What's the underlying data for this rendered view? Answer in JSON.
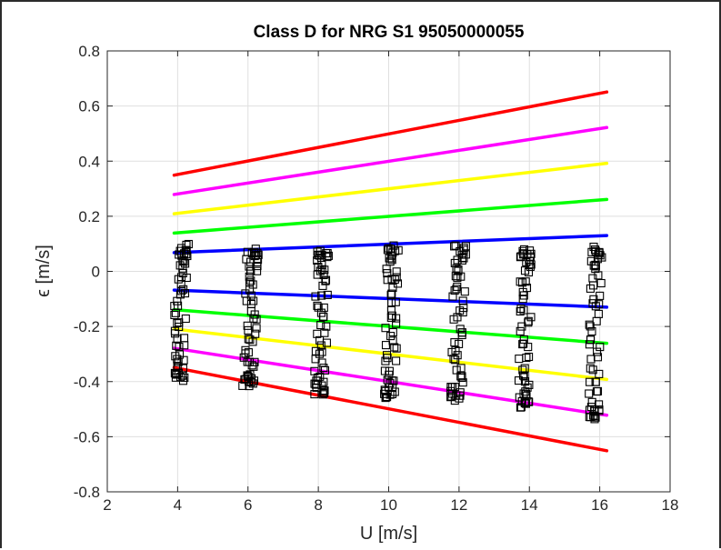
{
  "chart_data": {
    "type": "scatter",
    "title": "Class D for NRG S1 95050000055",
    "xlabel": "U [m/s]",
    "ylabel": "ϵ [m/s]",
    "xlim": [
      2,
      18
    ],
    "ylim": [
      -0.8,
      0.8
    ],
    "xticks": [
      2,
      4,
      6,
      8,
      10,
      12,
      14,
      16,
      18
    ],
    "yticks": [
      -0.8,
      -0.6,
      -0.4,
      -0.2,
      0,
      0.2,
      0.4,
      0.6,
      0.8
    ],
    "xtick_labels": [
      "2",
      "4",
      "6",
      "8",
      "10",
      "12",
      "14",
      "16",
      "18"
    ],
    "ytick_labels": [
      "-0.8",
      "-0.6",
      "-0.4",
      "-0.2",
      "0",
      "0.2",
      "0.4",
      "0.6",
      "0.8"
    ],
    "grid": true,
    "legend": "none",
    "lines": [
      {
        "color": "#ff0000",
        "x": [
          3.9,
          16.2
        ],
        "y": [
          0.349,
          0.651
        ]
      },
      {
        "color": "#ff00ff",
        "x": [
          3.9,
          16.2
        ],
        "y": [
          0.279,
          0.522
        ]
      },
      {
        "color": "#ffff00",
        "x": [
          3.9,
          16.2
        ],
        "y": [
          0.209,
          0.392
        ]
      },
      {
        "color": "#00ff00",
        "x": [
          3.9,
          16.2
        ],
        "y": [
          0.139,
          0.261
        ]
      },
      {
        "color": "#0000ff",
        "x": [
          3.9,
          16.2
        ],
        "y": [
          0.068,
          0.13
        ]
      },
      {
        "color": "#0000ff",
        "x": [
          3.9,
          16.2
        ],
        "y": [
          -0.068,
          -0.13
        ]
      },
      {
        "color": "#00ff00",
        "x": [
          3.9,
          16.2
        ],
        "y": [
          -0.139,
          -0.261
        ]
      },
      {
        "color": "#ffff00",
        "x": [
          3.9,
          16.2
        ],
        "y": [
          -0.209,
          -0.392
        ]
      },
      {
        "color": "#ff00ff",
        "x": [
          3.9,
          16.2
        ],
        "y": [
          -0.279,
          -0.522
        ]
      },
      {
        "color": "#ff0000",
        "x": [
          3.9,
          16.2
        ],
        "y": [
          -0.349,
          -0.651
        ]
      }
    ],
    "scatter": {
      "marker": "open-square",
      "color": "#000000",
      "clusters": [
        {
          "x": 4.0,
          "ymin": -0.39,
          "ymax": 0.09
        },
        {
          "x": 6.0,
          "ymin": -0.41,
          "ymax": 0.07
        },
        {
          "x": 8.0,
          "ymin": -0.44,
          "ymax": 0.07
        },
        {
          "x": 10.0,
          "ymin": -0.45,
          "ymax": 0.08
        },
        {
          "x": 11.9,
          "ymin": -0.46,
          "ymax": 0.08
        },
        {
          "x": 13.8,
          "ymin": -0.49,
          "ymax": 0.08
        },
        {
          "x": 15.8,
          "ymin": -0.53,
          "ymax": 0.08
        }
      ]
    },
    "colors": {
      "axis": "#262626",
      "grid": "#dfdfdf",
      "background": "#ffffff",
      "figure_border": "#2b2b2b"
    }
  }
}
